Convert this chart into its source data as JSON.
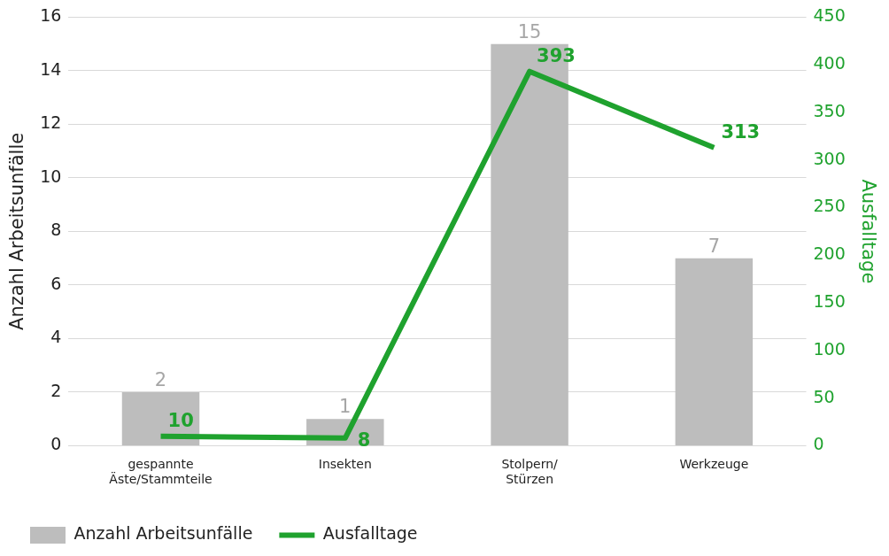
{
  "chart_data": {
    "type": "bar",
    "categories": [
      "gespannte\nÄste/Stammteile",
      "Insekten",
      "Stolpern/\nStürzen",
      "Werkzeuge"
    ],
    "ylabel": "Anzahl Arbeitsunfälle",
    "y2label": "Ausfalltage",
    "series": [
      {
        "name": "Anzahl Arbeitsunfälle",
        "color": "#bdbdbd",
        "values": [
          2,
          1,
          15,
          7
        ]
      },
      {
        "name": "Ausfalltage",
        "type": "line",
        "axis": "y2",
        "color": "#1fa22e",
        "values": [
          10,
          8,
          393,
          313
        ]
      }
    ],
    "ylim": [
      0,
      16
    ],
    "yticks": [
      0,
      2,
      4,
      6,
      8,
      10,
      12,
      14,
      16
    ],
    "y2lim": [
      0,
      450
    ],
    "y2ticks": [
      0,
      50,
      100,
      150,
      200,
      250,
      300,
      350,
      400,
      450
    ],
    "grid": "y",
    "legend": "bottom left",
    "data_labels": true,
    "marker": "none",
    "line_style": "solid"
  }
}
